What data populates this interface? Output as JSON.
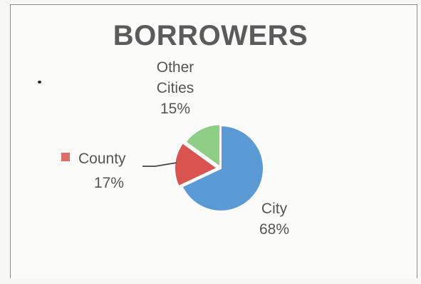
{
  "chart_data": {
    "type": "pie",
    "title": "BORROWERS",
    "slices": [
      {
        "category": "City",
        "value": 68,
        "label": "68%",
        "color": "#5b9bd5"
      },
      {
        "category": "County",
        "value": 17,
        "label": "17%",
        "color": "#d9534f"
      },
      {
        "category": "Other Cities",
        "value": 15,
        "label": "15%",
        "color": "#8fcf85"
      }
    ],
    "labels": {
      "other_line1": "Other",
      "other_line2": "Cities",
      "other_pct": "15%",
      "county_name": "County",
      "county_pct": "17%",
      "city_name": "City",
      "city_pct": "68%"
    },
    "legend": "inline labels"
  }
}
